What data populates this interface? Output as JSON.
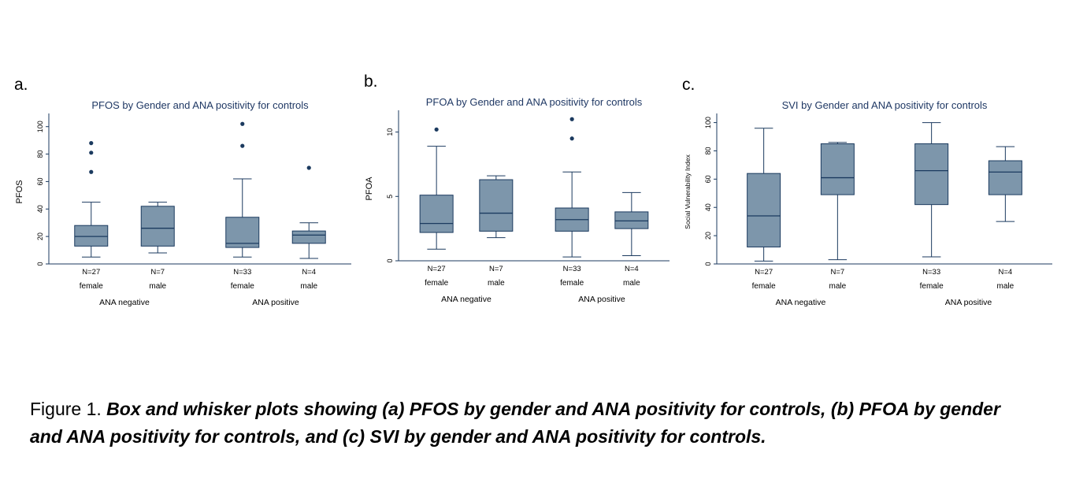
{
  "figure": {
    "caption_prefix": "Figure 1.",
    "caption_body": " Box and whisker plots showing (a) PFOS by gender and ANA positivity for controls, (b) PFOA by gender and ANA positivity for controls, and (c) SVI by gender and ANA positivity for controls."
  },
  "colors": {
    "box_fill": "#7d96ab",
    "box_stroke": "#1b3a5f",
    "axis_color": "#1b3a5f",
    "title_color": "#1f3864",
    "label_color": "#000000"
  },
  "chart_data": [
    {
      "type": "box",
      "panel_label": "a.",
      "title": "PFOS by Gender and ANA positivity for controls",
      "ylabel": "PFOS",
      "ylim": [
        0,
        105
      ],
      "yticks": [
        0,
        20,
        40,
        60,
        80,
        100
      ],
      "groups": [
        "ANA negative",
        "ANA positive"
      ],
      "boxes": [
        {
          "group": "ANA negative",
          "gender": "female",
          "n_label": "N=27",
          "whisker_low": 5,
          "q1": 13,
          "median": 20,
          "q3": 28,
          "whisker_high": 45,
          "outliers": [
            67,
            81,
            88
          ]
        },
        {
          "group": "ANA negative",
          "gender": "male",
          "n_label": "N=7",
          "whisker_low": 8,
          "q1": 13,
          "median": 26,
          "q3": 42,
          "whisker_high": 45,
          "outliers": []
        },
        {
          "group": "ANA positive",
          "gender": "female",
          "n_label": "N=33",
          "whisker_low": 5,
          "q1": 12,
          "median": 15,
          "q3": 34,
          "whisker_high": 62,
          "outliers": [
            86,
            102
          ]
        },
        {
          "group": "ANA positive",
          "gender": "male",
          "n_label": "N=4",
          "whisker_low": 4,
          "q1": 15,
          "median": 21,
          "q3": 24,
          "whisker_high": 30,
          "outliers": [
            70
          ]
        }
      ]
    },
    {
      "type": "box",
      "panel_label": "b.",
      "title": "PFOA by Gender and ANA positivity for controls",
      "ylabel": "PFOA",
      "ylim": [
        0,
        11.2
      ],
      "yticks": [
        0,
        5,
        10
      ],
      "groups": [
        "ANA negative",
        "ANA positive"
      ],
      "boxes": [
        {
          "group": "ANA negative",
          "gender": "female",
          "n_label": "N=27",
          "whisker_low": 0.9,
          "q1": 2.2,
          "median": 2.9,
          "q3": 5.1,
          "whisker_high": 8.9,
          "outliers": [
            10.2
          ]
        },
        {
          "group": "ANA negative",
          "gender": "male",
          "n_label": "N=7",
          "whisker_low": 1.8,
          "q1": 2.3,
          "median": 3.7,
          "q3": 6.3,
          "whisker_high": 6.6,
          "outliers": []
        },
        {
          "group": "ANA positive",
          "gender": "female",
          "n_label": "N=33",
          "whisker_low": 0.3,
          "q1": 2.3,
          "median": 3.2,
          "q3": 4.1,
          "whisker_high": 6.9,
          "outliers": [
            9.5,
            11
          ]
        },
        {
          "group": "ANA positive",
          "gender": "male",
          "n_label": "N=4",
          "whisker_low": 0.4,
          "q1": 2.5,
          "median": 3.1,
          "q3": 3.8,
          "whisker_high": 5.3,
          "outliers": []
        }
      ]
    },
    {
      "type": "box",
      "panel_label": "c.",
      "title": "SVI by Gender and ANA positivity for controls",
      "ylabel": "Social Vulnerability Index",
      "ylim": [
        0,
        102
      ],
      "yticks": [
        0,
        20,
        40,
        60,
        80,
        100
      ],
      "groups": [
        "ANA negative",
        "ANA positive"
      ],
      "boxes": [
        {
          "group": "ANA negative",
          "gender": "female",
          "n_label": "N=27",
          "whisker_low": 2,
          "q1": 12,
          "median": 34,
          "q3": 64,
          "whisker_high": 96,
          "outliers": []
        },
        {
          "group": "ANA negative",
          "gender": "male",
          "n_label": "N=7",
          "whisker_low": 3,
          "q1": 49,
          "median": 61,
          "q3": 85,
          "whisker_high": 86,
          "outliers": []
        },
        {
          "group": "ANA positive",
          "gender": "female",
          "n_label": "N=33",
          "whisker_low": 5,
          "q1": 42,
          "median": 66,
          "q3": 85,
          "whisker_high": 100,
          "outliers": []
        },
        {
          "group": "ANA positive",
          "gender": "male",
          "n_label": "N=4",
          "whisker_low": 30,
          "q1": 49,
          "median": 65,
          "q3": 73,
          "whisker_high": 83,
          "outliers": []
        }
      ]
    }
  ]
}
